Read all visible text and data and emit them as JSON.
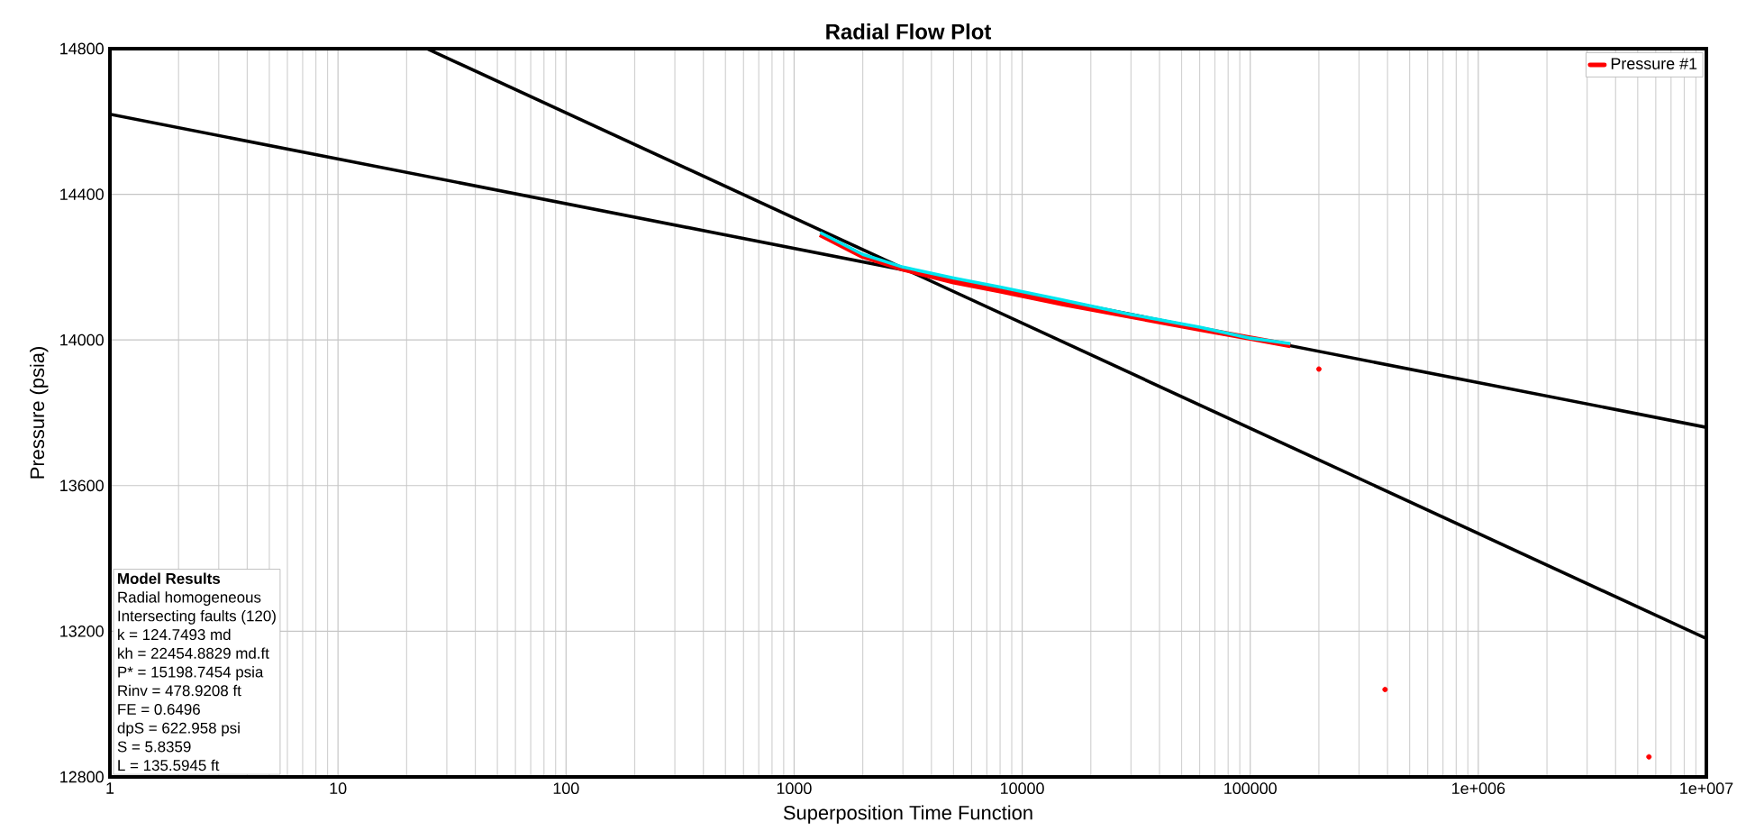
{
  "chart_data": {
    "type": "line",
    "title": "Radial Flow Plot",
    "xlabel": "Superposition Time Function",
    "ylabel": "Pressure (psia)",
    "log": "x",
    "grid": true,
    "legend": "top right",
    "line_style": "solid",
    "xlim": [
      1,
      10000000
    ],
    "ylim": [
      12800,
      14800
    ],
    "xticks": [
      1,
      10,
      100,
      1000,
      10000,
      100000,
      {
        "value": 1000000,
        "label": "1e+006"
      },
      {
        "value": 10000000,
        "label": "1e+007"
      }
    ],
    "yticks": [
      12800,
      13200,
      13600,
      14000,
      14400,
      14800
    ],
    "series": [
      {
        "color": "#000000",
        "x": [
          1,
          10000000
        ],
        "values": [
          14620,
          13760
        ]
      },
      {
        "color": "#000000",
        "x": [
          24.5,
          10000000
        ],
        "values": [
          14800,
          13180
        ]
      },
      {
        "name": "Pressure #1",
        "color": "#ff0000",
        "x": [
          1300,
          2000,
          3000,
          5000,
          8000,
          15000,
          30000,
          60000,
          100000,
          150000
        ],
        "values": [
          14290,
          14230,
          14195,
          14160,
          14135,
          14100,
          14065,
          14030,
          14005,
          13985
        ]
      },
      {
        "type": "scatter",
        "marker": "circle",
        "color": "#ff0000",
        "x": [
          200000,
          390000,
          5600000
        ],
        "values": [
          13920,
          13040,
          12855
        ]
      },
      {
        "color": "#00e5ee",
        "x": [
          1300,
          2000,
          3000,
          5000,
          8000,
          15000,
          30000,
          60000,
          100000,
          150000
        ],
        "values": [
          14295,
          14235,
          14200,
          14170,
          14145,
          14110,
          14070,
          14035,
          14005,
          13990
        ]
      }
    ],
    "annotations": [
      "Model Results",
      "Radial homogeneous",
      "Intersecting faults (120)",
      "k = 124.7493 md",
      "kh = 22454.8829 md.ft",
      "P* = 15198.7454 psia",
      "Rinv = 478.9208 ft",
      "FE = 0.6496",
      "dpS = 622.958 psi",
      "S = 5.8359",
      "L = 135.5945 ft"
    ]
  }
}
